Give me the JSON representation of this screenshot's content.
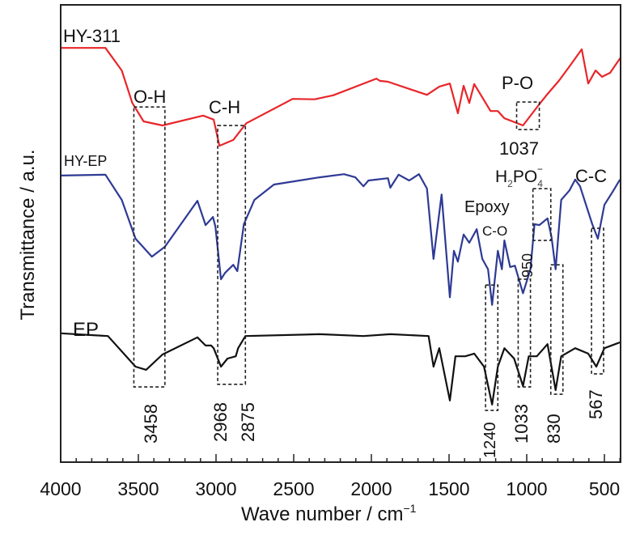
{
  "chart_data": {
    "type": "line",
    "title": "",
    "xlabel": "Wave number / cm",
    "xlabel_sup": "−1",
    "ylabel": "Transmittance / a.u.",
    "xlim": [
      4000,
      400
    ],
    "ylim": [
      0,
      100
    ],
    "x_ticks": [
      4000,
      3500,
      3000,
      2500,
      2000,
      1500,
      1000,
      500
    ],
    "x_tick_labels": [
      "4000",
      "3500",
      "3000",
      "2500",
      "2000",
      "1500",
      "1000",
      "500"
    ],
    "grid": false,
    "series": [
      {
        "name": "HY-311",
        "color": "#e8262a",
        "points": [
          [
            4000,
            90.8
          ],
          [
            3712,
            90.8
          ],
          [
            3607,
            85.8
          ],
          [
            3539,
            78.6
          ],
          [
            3466,
            74.5
          ],
          [
            3345,
            73.6
          ],
          [
            3083,
            75.8
          ],
          [
            3015,
            74.9
          ],
          [
            2978,
            69.1
          ],
          [
            2889,
            70.4
          ],
          [
            2837,
            72.7
          ],
          [
            2805,
            74.1
          ],
          [
            2507,
            79.5
          ],
          [
            2365,
            79.4
          ],
          [
            2245,
            80.3
          ],
          [
            1967,
            84.0
          ],
          [
            1946,
            83.5
          ],
          [
            1893,
            83.3
          ],
          [
            1642,
            80.4
          ],
          [
            1563,
            82.2
          ],
          [
            1495,
            82.9
          ],
          [
            1443,
            76.3
          ],
          [
            1406,
            82.4
          ],
          [
            1370,
            78.6
          ],
          [
            1338,
            82.8
          ],
          [
            1233,
            76.8
          ],
          [
            1186,
            76.8
          ],
          [
            1144,
            75.2
          ],
          [
            1024,
            73.6
          ],
          [
            924,
            78.1
          ],
          [
            866,
            80.6
          ],
          [
            793,
            83.5
          ],
          [
            725,
            86.7
          ],
          [
            646,
            90.5
          ],
          [
            604,
            82.9
          ],
          [
            557,
            85.8
          ],
          [
            515,
            84.4
          ],
          [
            463,
            85.3
          ],
          [
            395,
            88.7
          ]
        ]
      },
      {
        "name": "HY-EP",
        "color": "#2e3a94",
        "points": [
          [
            4000,
            62.5
          ],
          [
            3712,
            62.7
          ],
          [
            3607,
            57.1
          ],
          [
            3518,
            48.5
          ],
          [
            3413,
            44.5
          ],
          [
            3329,
            46.7
          ],
          [
            3120,
            56.9
          ],
          [
            3067,
            51.5
          ],
          [
            3020,
            53.3
          ],
          [
            3004,
            51.2
          ],
          [
            2968,
            39.5
          ],
          [
            2942,
            40.9
          ],
          [
            2889,
            42.7
          ],
          [
            2863,
            41.3
          ],
          [
            2821,
            51.7
          ],
          [
            2753,
            57.1
          ],
          [
            2627,
            60.5
          ],
          [
            2334,
            62.1
          ],
          [
            2176,
            62.8
          ],
          [
            2103,
            62.1
          ],
          [
            2051,
            60.1
          ],
          [
            2019,
            61.4
          ],
          [
            1893,
            61.9
          ],
          [
            1878,
            59.8
          ],
          [
            1825,
            62.7
          ],
          [
            1757,
            61.4
          ],
          [
            1694,
            62.8
          ],
          [
            1642,
            59.6
          ],
          [
            1600,
            44.0
          ],
          [
            1548,
            58.3
          ],
          [
            1495,
            35.5
          ],
          [
            1469,
            45.8
          ],
          [
            1443,
            43.4
          ],
          [
            1406,
            49.4
          ],
          [
            1370,
            47.6
          ],
          [
            1322,
            50.6
          ],
          [
            1286,
            44.0
          ],
          [
            1249,
            41.7
          ],
          [
            1223,
            33.8
          ],
          [
            1186,
            45.8
          ],
          [
            1160,
            41.7
          ],
          [
            1144,
            48.1
          ],
          [
            1107,
            42.2
          ],
          [
            1076,
            42.5
          ],
          [
            1024,
            36.4
          ],
          [
            976,
            41.7
          ],
          [
            950,
            51.7
          ],
          [
            919,
            51.5
          ],
          [
            866,
            53.0
          ],
          [
            840,
            48.8
          ],
          [
            814,
            41.7
          ],
          [
            778,
            57.1
          ],
          [
            725,
            59.2
          ],
          [
            688,
            61.6
          ],
          [
            657,
            60.1
          ],
          [
            578,
            51.7
          ],
          [
            542,
            48.5
          ],
          [
            500,
            56.0
          ],
          [
            447,
            58.9
          ],
          [
            400,
            61.6
          ]
        ]
      },
      {
        "name": "EP",
        "color": "#111111",
        "points": [
          [
            4000,
            27.5
          ],
          [
            3696,
            26.9
          ],
          [
            3518,
            20.1
          ],
          [
            3450,
            19.4
          ],
          [
            3345,
            22.8
          ],
          [
            3120,
            26.6
          ],
          [
            3067,
            24.8
          ],
          [
            3031,
            24.8
          ],
          [
            3015,
            24.2
          ],
          [
            2968,
            20.1
          ],
          [
            2926,
            21.9
          ],
          [
            2873,
            22.4
          ],
          [
            2858,
            24.2
          ],
          [
            2811,
            26.9
          ],
          [
            2334,
            27.3
          ],
          [
            2051,
            26.9
          ],
          [
            1878,
            27.3
          ],
          [
            1632,
            26.9
          ],
          [
            1600,
            20.1
          ],
          [
            1563,
            24.2
          ],
          [
            1495,
            12.6
          ],
          [
            1459,
            22.4
          ],
          [
            1396,
            22.4
          ],
          [
            1338,
            23.0
          ],
          [
            1275,
            20.1
          ],
          [
            1223,
            11.7
          ],
          [
            1186,
            20.1
          ],
          [
            1144,
            24.2
          ],
          [
            1081,
            21.9
          ],
          [
            1024,
            15.8
          ],
          [
            987,
            22.4
          ],
          [
            935,
            22.4
          ],
          [
            866,
            25.1
          ],
          [
            814,
            14.9
          ],
          [
            778,
            22.4
          ],
          [
            688,
            24.2
          ],
          [
            604,
            23.0
          ],
          [
            552,
            20.1
          ],
          [
            500,
            24.2
          ],
          [
            400,
            25.5
          ]
        ]
      }
    ],
    "highlight_boxes": [
      {
        "name": "O-H",
        "x": [
          3529,
          3329
        ],
        "y": [
          15.6,
          77.7
        ]
      },
      {
        "name": "C-H",
        "x": [
          2989,
          2811
        ],
        "y": [
          16.2,
          73.6
        ]
      },
      {
        "name": "P-O",
        "x": [
          1065,
          919
        ],
        "y": [
          72.7,
          78.8
        ]
      },
      {
        "name": "H2PO4",
        "x": [
          960,
          845
        ],
        "y": [
          48.1,
          59.6
        ]
      },
      {
        "name": "1240",
        "x": [
          1265,
          1186
        ],
        "y": [
          10.4,
          38.2
        ]
      },
      {
        "name": "1033",
        "x": [
          1055,
          976
        ],
        "y": [
          15.6,
          39.5
        ]
      },
      {
        "name": "830",
        "x": [
          845,
          767
        ],
        "y": [
          14.0,
          42.7
        ]
      },
      {
        "name": "567",
        "x": [
          583,
          505
        ],
        "y": [
          18.5,
          50.8
        ]
      }
    ],
    "annotations": {
      "oh": "O-H",
      "ch": "C-H",
      "po": "P-O",
      "po_wn": "1037",
      "h2po4_h": "H",
      "h2po4_sub": "2",
      "h2po4_po": "PO",
      "h2po4_sub4": "4",
      "h2po4_sup": "−",
      "epoxy": "Epoxy",
      "co": "C-O",
      "cc": "C-C",
      "wn950": "950",
      "wn3458": "3458",
      "wn2968": "2968",
      "wn2875": "2875",
      "wn1240": "1240",
      "wn1033": "1033",
      "wn830": "830",
      "wn567": "567"
    }
  }
}
